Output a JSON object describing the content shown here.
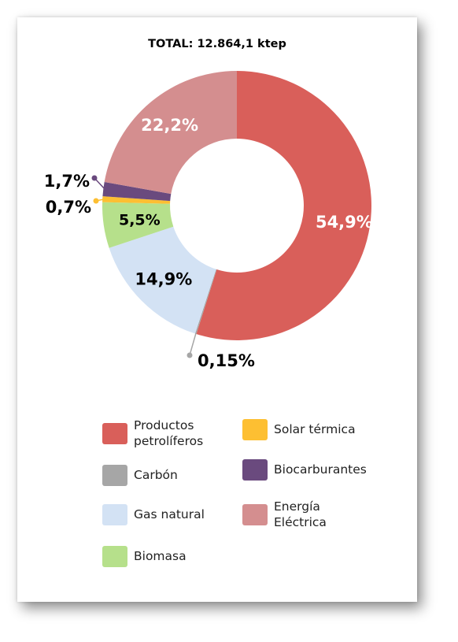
{
  "chart_data": {
    "type": "pie",
    "title": "TOTAL: 12.864,1 ktep",
    "slices": [
      {
        "name": "Productos petrolíferos",
        "label": "54,9%",
        "value": 54.9,
        "color": "#d95f5a"
      },
      {
        "name": "Carbón",
        "label": "0,15%",
        "value": 0.15,
        "color": "#a6a6a6"
      },
      {
        "name": "Gas natural",
        "label": "14,9%",
        "value": 14.9,
        "color": "#d3e2f4"
      },
      {
        "name": "Biomasa",
        "label": "5,5%",
        "value": 5.5,
        "color": "#b6e08b"
      },
      {
        "name": "Solar térmica",
        "label": "0,7%",
        "value": 0.7,
        "color": "#fdbf32"
      },
      {
        "name": "Biocarburantes",
        "label": "1,7%",
        "value": 1.7,
        "color": "#6a4a7e"
      },
      {
        "name": "Energía Eléctrica",
        "label": "22,2%",
        "value": 22.2,
        "color": "#d48e8f"
      }
    ],
    "legend": [
      {
        "name_lines": [
          "Productos",
          "petrolíferos"
        ],
        "color": "#d95f5a"
      },
      {
        "name_lines": [
          "Solar térmica"
        ],
        "color": "#fdbf32"
      },
      {
        "name_lines": [
          "Carbón"
        ],
        "color": "#a6a6a6"
      },
      {
        "name_lines": [
          "Biocarburantes"
        ],
        "color": "#6a4a7e"
      },
      {
        "name_lines": [
          "Gas natural"
        ],
        "color": "#d3e2f4"
      },
      {
        "name_lines": [
          "Energía",
          "Eléctrica"
        ],
        "color": "#d48e8f"
      },
      {
        "name_lines": [
          "Biomasa"
        ],
        "color": "#b6e08b"
      }
    ]
  }
}
